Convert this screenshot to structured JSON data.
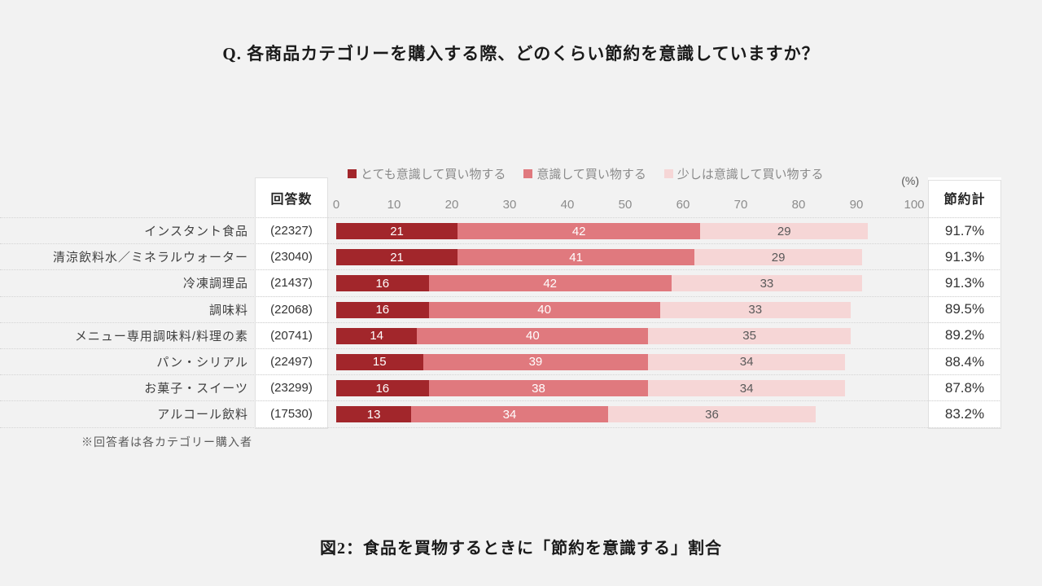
{
  "page": {
    "title": "Q. 各商品カテゴリーを購入する際、どのくらい節約を意識していますか？",
    "footnote": "※回答者は各カテゴリー購入者",
    "caption": "図2：食品を買物するときに「節約を意識する」割合"
  },
  "chart_data": {
    "type": "bar",
    "orientation": "horizontal",
    "stacked": true,
    "title": "Q. 各商品カテゴリーを購入する際、どのくらい節約を意識していますか？",
    "unit_label": "(%)",
    "count_header": "回答数",
    "total_header": "節約計",
    "xlim": [
      0,
      100
    ],
    "x_ticks": [
      0,
      10,
      20,
      30,
      40,
      50,
      60,
      70,
      80,
      90,
      100
    ],
    "legend_position": "top",
    "grid": false,
    "legend": [
      {
        "label": "とても意識して買い物する",
        "color": "#A2262B"
      },
      {
        "label": "意識して買い物する",
        "color": "#E0797E"
      },
      {
        "label": "少しは意識して買い物する",
        "color": "#F6D6D6"
      }
    ],
    "segment_label_colors": [
      "#FFFFFF",
      "#FFFFFF",
      "#595959"
    ],
    "background_color": "#F2F2F2",
    "rows": [
      {
        "category": "インスタント食品",
        "count": "(22327)",
        "values": [
          21,
          42,
          29
        ],
        "total": "91.7%"
      },
      {
        "category": "清涼飲料水／ミネラルウォーター",
        "count": "(23040)",
        "values": [
          21,
          41,
          29
        ],
        "total": "91.3%"
      },
      {
        "category": "冷凍調理品",
        "count": "(21437)",
        "values": [
          16,
          42,
          33
        ],
        "total": "91.3%"
      },
      {
        "category": "調味料",
        "count": "(22068)",
        "values": [
          16,
          40,
          33
        ],
        "total": "89.5%"
      },
      {
        "category": "メニュー専用調味料/料理の素",
        "count": "(20741)",
        "values": [
          14,
          40,
          35
        ],
        "total": "89.2%"
      },
      {
        "category": "パン・シリアル",
        "count": "(22497)",
        "values": [
          15,
          39,
          34
        ],
        "total": "88.4%"
      },
      {
        "category": "お菓子・スイーツ",
        "count": "(23299)",
        "values": [
          16,
          38,
          34
        ],
        "total": "87.8%"
      },
      {
        "category": "アルコール飲料",
        "count": "(17530)",
        "values": [
          13,
          34,
          36
        ],
        "total": "83.2%"
      }
    ]
  }
}
